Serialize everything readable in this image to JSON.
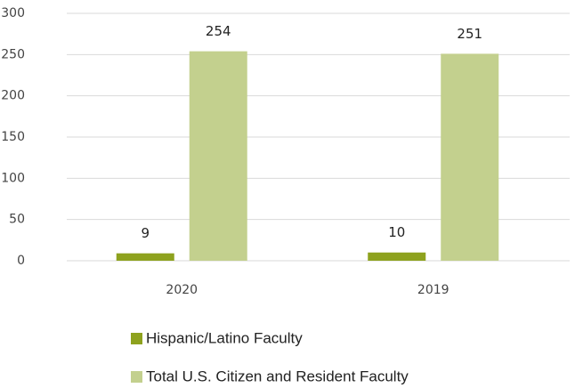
{
  "chart_data": {
    "type": "bar",
    "categories": [
      "2020",
      "2019"
    ],
    "series": [
      {
        "name": "Hispanic/Latino Faculty",
        "color": "#8ea21e",
        "values": [
          9,
          10
        ]
      },
      {
        "name": "Total U.S. Citizen and Resident Faculty",
        "color": "#c3d08e",
        "values": [
          254,
          251
        ]
      }
    ],
    "ylim": [
      0,
      300
    ],
    "yticks": [
      0,
      50,
      100,
      150,
      200,
      250,
      300
    ],
    "grid": true,
    "legend": "bottom"
  }
}
